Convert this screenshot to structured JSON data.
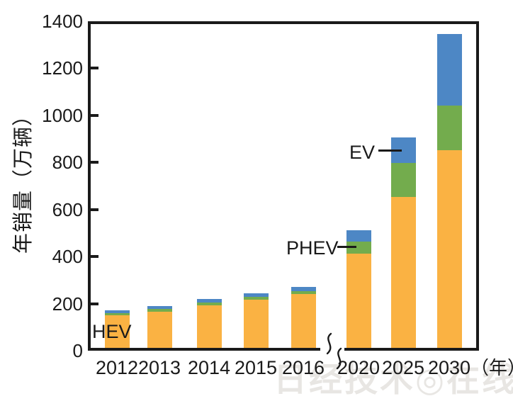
{
  "chart_data": {
    "type": "bar",
    "stacked": true,
    "title": "",
    "ylabel": "年销量（万辆）",
    "x_unit_label": "（年）",
    "categories": [
      "2012",
      "2013",
      "2014",
      "2015",
      "2016",
      "2020",
      "2025",
      "2030"
    ],
    "series": [
      {
        "name": "HEV",
        "color": "#FAB243",
        "values": [
          150,
          167,
          193,
          217,
          241,
          413,
          652,
          851
        ]
      },
      {
        "name": "PHEV",
        "color": "#73AC4D",
        "values": [
          9,
          11,
          12,
          13,
          12,
          52,
          145,
          190
        ]
      },
      {
        "name": "EV",
        "color": "#4D87C5",
        "values": [
          13,
          12,
          15,
          14,
          19,
          48,
          108,
          305
        ]
      }
    ],
    "totals": [
      172,
      190,
      220,
      244,
      272,
      513,
      905,
      1346
    ],
    "ylim": [
      0,
      1400
    ],
    "yticks": [
      0,
      200,
      400,
      600,
      800,
      1000,
      1200,
      1400
    ],
    "grid": false,
    "legend_position": "inline-annotations",
    "axis_break_between": [
      "2016",
      "2020"
    ]
  },
  "annotations": {
    "hev": "HEV",
    "phev": "PHEV",
    "ev": "EV"
  },
  "colors": {
    "ink": "#1a1a1a",
    "hev": "#FAB243",
    "phev": "#73AC4D",
    "ev": "#4D87C5",
    "watermark": "#e8e6e3",
    "watermark_mark": "#f2a43a"
  },
  "watermark": {
    "text": "日经技术◎在线",
    "mark": "!"
  }
}
